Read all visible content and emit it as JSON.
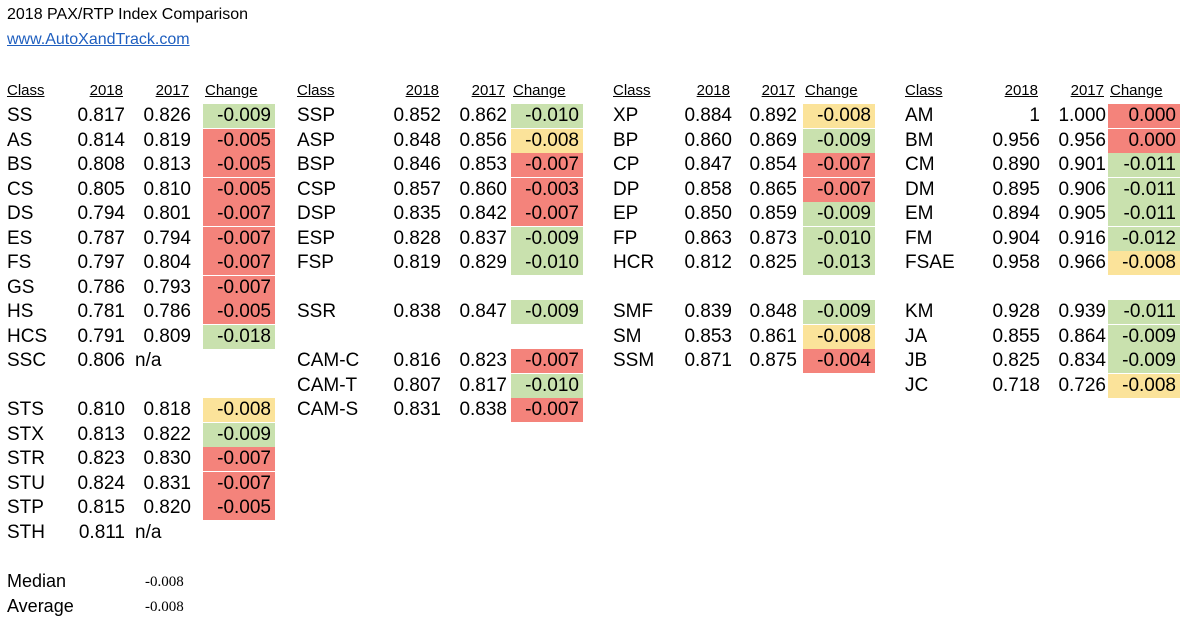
{
  "title": "2018 PAX/RTP Index Comparison",
  "link": "www.AutoXandTrack.com",
  "headers": {
    "class": "Class",
    "y2018": "2018",
    "y2017": "2017",
    "change": "Change"
  },
  "colors": {
    "red": "#f4837b",
    "green": "#c9e1ae",
    "yellow": "#fbe39a"
  },
  "groups": [
    {
      "rows": [
        {
          "class": "SS",
          "y2018": "0.817",
          "y2017": "0.826",
          "change": "-0.009",
          "color": "green"
        },
        {
          "class": "AS",
          "y2018": "0.814",
          "y2017": "0.819",
          "change": "-0.005",
          "color": "red"
        },
        {
          "class": "BS",
          "y2018": "0.808",
          "y2017": "0.813",
          "change": "-0.005",
          "color": "red"
        },
        {
          "class": "CS",
          "y2018": "0.805",
          "y2017": "0.810",
          "change": "-0.005",
          "color": "red"
        },
        {
          "class": "DS",
          "y2018": "0.794",
          "y2017": "0.801",
          "change": "-0.007",
          "color": "red"
        },
        {
          "class": "ES",
          "y2018": "0.787",
          "y2017": "0.794",
          "change": "-0.007",
          "color": "red"
        },
        {
          "class": "FS",
          "y2018": "0.797",
          "y2017": "0.804",
          "change": "-0.007",
          "color": "red"
        },
        {
          "class": "GS",
          "y2018": "0.786",
          "y2017": "0.793",
          "change": "-0.007",
          "color": "red"
        },
        {
          "class": "HS",
          "y2018": "0.781",
          "y2017": "0.786",
          "change": "-0.005",
          "color": "red"
        },
        {
          "class": "HCS",
          "y2018": "0.791",
          "y2017": "0.809",
          "change": "-0.018",
          "color": "green"
        },
        {
          "class": "SSC",
          "y2018": "0.806",
          "y2017": "n/a",
          "change": "",
          "color": ""
        },
        null,
        {
          "class": "STS",
          "y2018": "0.810",
          "y2017": "0.818",
          "change": "-0.008",
          "color": "yellow"
        },
        {
          "class": "STX",
          "y2018": "0.813",
          "y2017": "0.822",
          "change": "-0.009",
          "color": "green"
        },
        {
          "class": "STR",
          "y2018": "0.823",
          "y2017": "0.830",
          "change": "-0.007",
          "color": "red"
        },
        {
          "class": "STU",
          "y2018": "0.824",
          "y2017": "0.831",
          "change": "-0.007",
          "color": "red"
        },
        {
          "class": "STP",
          "y2018": "0.815",
          "y2017": "0.820",
          "change": "-0.005",
          "color": "red"
        },
        {
          "class": "STH",
          "y2018": "0.811",
          "y2017": "n/a",
          "change": "",
          "color": ""
        }
      ]
    },
    {
      "rows": [
        {
          "class": "SSP",
          "y2018": "0.852",
          "y2017": "0.862",
          "change": "-0.010",
          "color": "green"
        },
        {
          "class": "ASP",
          "y2018": "0.848",
          "y2017": "0.856",
          "change": "-0.008",
          "color": "yellow"
        },
        {
          "class": "BSP",
          "y2018": "0.846",
          "y2017": "0.853",
          "change": "-0.007",
          "color": "red"
        },
        {
          "class": "CSP",
          "y2018": "0.857",
          "y2017": "0.860",
          "change": "-0.003",
          "color": "red"
        },
        {
          "class": "DSP",
          "y2018": "0.835",
          "y2017": "0.842",
          "change": "-0.007",
          "color": "red"
        },
        {
          "class": "ESP",
          "y2018": "0.828",
          "y2017": "0.837",
          "change": "-0.009",
          "color": "green"
        },
        {
          "class": "FSP",
          "y2018": "0.819",
          "y2017": "0.829",
          "change": "-0.010",
          "color": "green"
        },
        null,
        {
          "class": "SSR",
          "y2018": "0.838",
          "y2017": "0.847",
          "change": "-0.009",
          "color": "green"
        },
        null,
        {
          "class": "CAM-C",
          "y2018": "0.816",
          "y2017": "0.823",
          "change": "-0.007",
          "color": "red"
        },
        {
          "class": "CAM-T",
          "y2018": "0.807",
          "y2017": "0.817",
          "change": "-0.010",
          "color": "green"
        },
        {
          "class": "CAM-S",
          "y2018": "0.831",
          "y2017": "0.838",
          "change": "-0.007",
          "color": "red"
        }
      ]
    },
    {
      "rows": [
        {
          "class": "XP",
          "y2018": "0.884",
          "y2017": "0.892",
          "change": "-0.008",
          "color": "yellow"
        },
        {
          "class": "BP",
          "y2018": "0.860",
          "y2017": "0.869",
          "change": "-0.009",
          "color": "green"
        },
        {
          "class": "CP",
          "y2018": "0.847",
          "y2017": "0.854",
          "change": "-0.007",
          "color": "red"
        },
        {
          "class": "DP",
          "y2018": "0.858",
          "y2017": "0.865",
          "change": "-0.007",
          "color": "red"
        },
        {
          "class": "EP",
          "y2018": "0.850",
          "y2017": "0.859",
          "change": "-0.009",
          "color": "green"
        },
        {
          "class": "FP",
          "y2018": "0.863",
          "y2017": "0.873",
          "change": "-0.010",
          "color": "green"
        },
        {
          "class": "HCR",
          "y2018": "0.812",
          "y2017": "0.825",
          "change": "-0.013",
          "color": "green"
        },
        null,
        {
          "class": "SMF",
          "y2018": "0.839",
          "y2017": "0.848",
          "change": "-0.009",
          "color": "green"
        },
        {
          "class": "SM",
          "y2018": "0.853",
          "y2017": "0.861",
          "change": "-0.008",
          "color": "yellow"
        },
        {
          "class": "SSM",
          "y2018": "0.871",
          "y2017": "0.875",
          "change": "-0.004",
          "color": "red"
        }
      ]
    },
    {
      "rows": [
        {
          "class": "AM",
          "y2018": "1",
          "y2017": "1.000",
          "change": "0.000",
          "color": "red"
        },
        {
          "class": "BM",
          "y2018": "0.956",
          "y2017": "0.956",
          "change": "0.000",
          "color": "red"
        },
        {
          "class": "CM",
          "y2018": "0.890",
          "y2017": "0.901",
          "change": "-0.011",
          "color": "green"
        },
        {
          "class": "DM",
          "y2018": "0.895",
          "y2017": "0.906",
          "change": "-0.011",
          "color": "green"
        },
        {
          "class": "EM",
          "y2018": "0.894",
          "y2017": "0.905",
          "change": "-0.011",
          "color": "green"
        },
        {
          "class": "FM",
          "y2018": "0.904",
          "y2017": "0.916",
          "change": "-0.012",
          "color": "green"
        },
        {
          "class": "FSAE",
          "y2018": "0.958",
          "y2017": "0.966",
          "change": "-0.008",
          "color": "yellow"
        },
        null,
        {
          "class": "KM",
          "y2018": "0.928",
          "y2017": "0.939",
          "change": "-0.011",
          "color": "green"
        },
        {
          "class": "JA",
          "y2018": "0.855",
          "y2017": "0.864",
          "change": "-0.009",
          "color": "green"
        },
        {
          "class": "JB",
          "y2018": "0.825",
          "y2017": "0.834",
          "change": "-0.009",
          "color": "green"
        },
        {
          "class": "JC",
          "y2018": "0.718",
          "y2017": "0.726",
          "change": "-0.008",
          "color": "yellow"
        }
      ]
    }
  ],
  "summary": {
    "median_label": "Median",
    "median_value": "-0.008",
    "average_label": "Average",
    "average_value": "-0.008"
  }
}
